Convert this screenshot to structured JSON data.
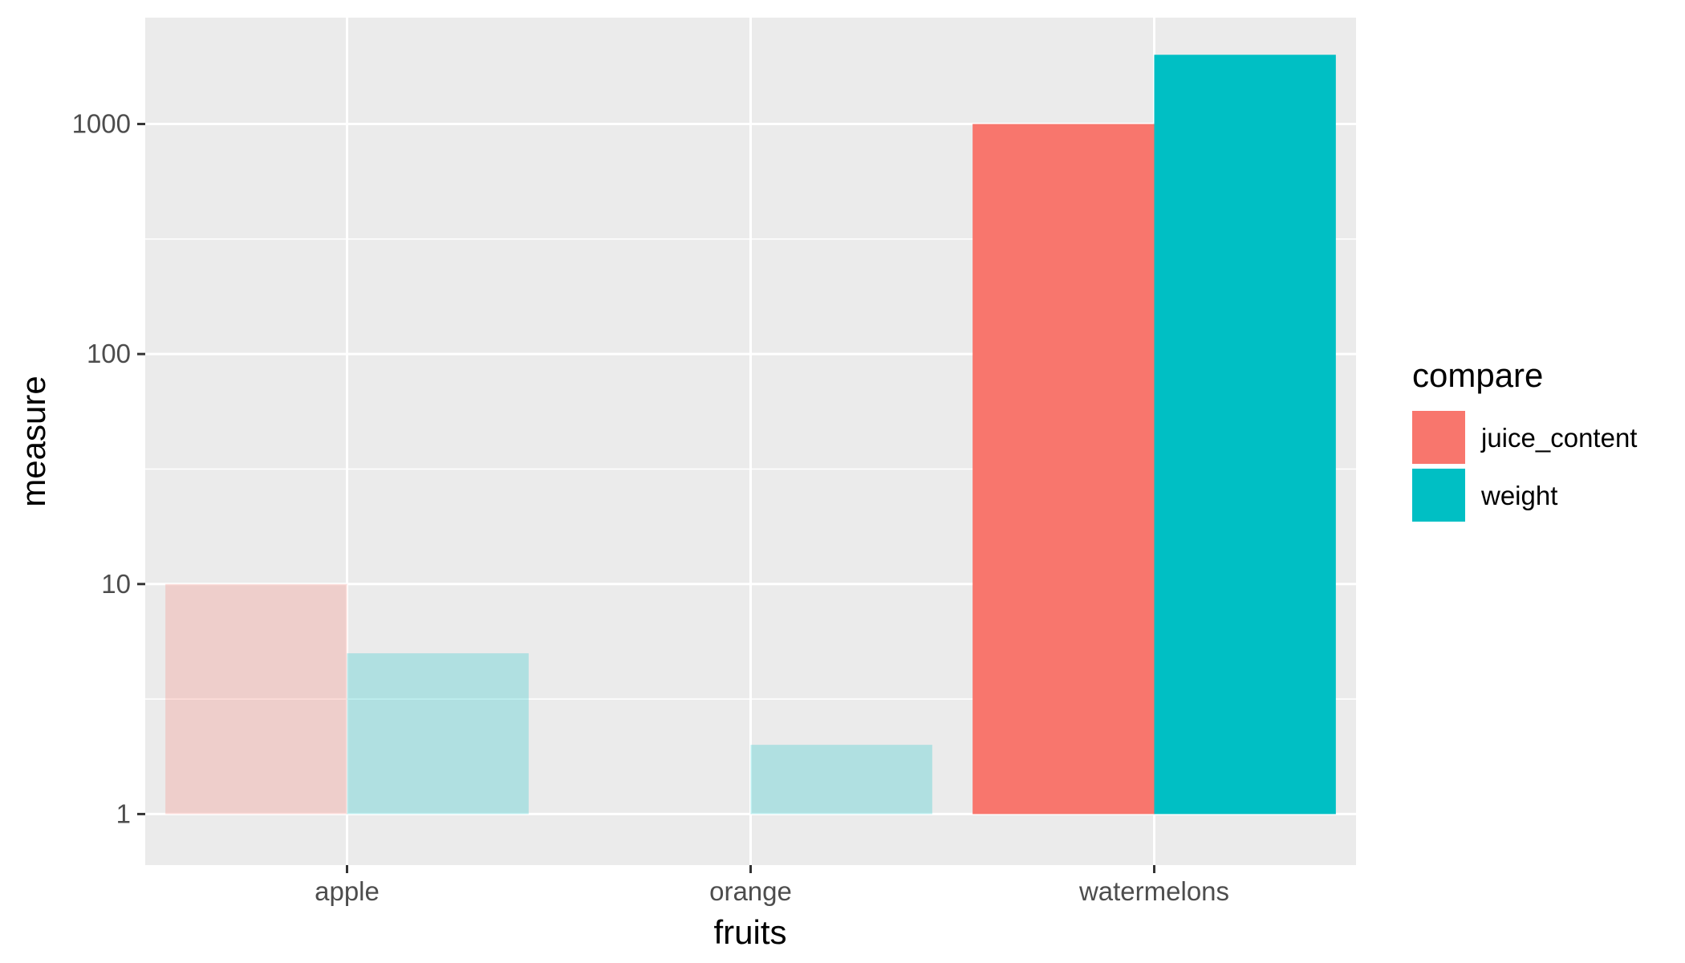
{
  "chart_data": {
    "type": "bar",
    "title": "",
    "xlabel": "fruits",
    "ylabel": "measure",
    "y_scale": "log10",
    "ylim": [
      0.6,
      2900
    ],
    "y_ticks": [
      {
        "value": 1,
        "label": "1"
      },
      {
        "value": 10,
        "label": "10"
      },
      {
        "value": 100,
        "label": "100"
      },
      {
        "value": 1000,
        "label": "1000"
      }
    ],
    "categories": [
      "apple",
      "orange",
      "watermelons"
    ],
    "series": [
      {
        "name": "juice_content",
        "color": "#F8766D",
        "values": [
          10,
          1,
          1000
        ],
        "opacity": [
          0.25,
          0.25,
          1
        ]
      },
      {
        "name": "weight",
        "color": "#00BFC4",
        "values": [
          5,
          2,
          2000
        ],
        "opacity": [
          0.25,
          0.25,
          1
        ]
      }
    ],
    "legend": {
      "title": "compare",
      "position": "right"
    },
    "grid": true,
    "panel_background": "#EBEBEB",
    "grid_color": "#FFFFFF"
  }
}
